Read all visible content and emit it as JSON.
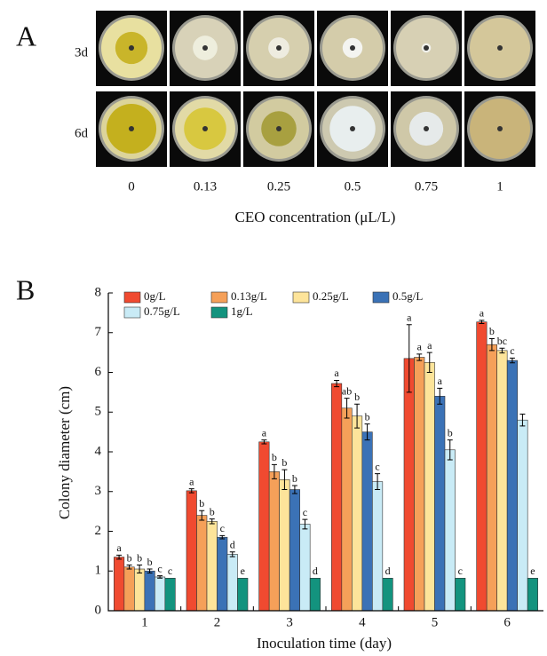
{
  "panel_a": {
    "label": "A",
    "rows": [
      "3d",
      "6d"
    ],
    "columns": [
      "0",
      "0.13",
      "0.25",
      "0.5",
      "0.75",
      "1"
    ],
    "axis_title": "CEO concentration (μL/L)"
  },
  "chart_data": {
    "type": "bar",
    "panel_label": "B",
    "x_label": "Inoculation time (day)",
    "y_label": "Colony diameter (cm)",
    "categories": [
      "1",
      "2",
      "3",
      "4",
      "5",
      "6"
    ],
    "ylim": [
      0,
      8
    ],
    "yticks": [
      0,
      1,
      2,
      3,
      4,
      5,
      6,
      7,
      8
    ],
    "series": [
      {
        "name": "0g/L",
        "color": "#f04a30",
        "values": [
          1.35,
          3.02,
          4.25,
          5.72,
          6.35,
          7.27
        ],
        "errors": [
          0.05,
          0.05,
          0.05,
          0.08,
          0.85,
          0.04
        ],
        "labels": [
          "a",
          "a",
          "a",
          "a",
          "a",
          "a"
        ]
      },
      {
        "name": "0.13g/L",
        "color": "#f5a059",
        "values": [
          1.1,
          2.4,
          3.5,
          5.1,
          6.38,
          6.7
        ],
        "errors": [
          0.05,
          0.12,
          0.18,
          0.25,
          0.08,
          0.15
        ],
        "labels": [
          "b",
          "b",
          "b",
          "ab",
          "a",
          "b"
        ]
      },
      {
        "name": "0.25g/L",
        "color": "#fde49a",
        "values": [
          1.05,
          2.25,
          3.3,
          4.9,
          6.25,
          6.55
        ],
        "errors": [
          0.1,
          0.06,
          0.25,
          0.3,
          0.25,
          0.06
        ],
        "labels": [
          "b",
          "b",
          "b",
          "b",
          "a",
          "bc"
        ]
      },
      {
        "name": "0.5g/L",
        "color": "#3b72b6",
        "values": [
          1.0,
          1.85,
          3.05,
          4.5,
          5.4,
          6.3
        ],
        "errors": [
          0.05,
          0.04,
          0.1,
          0.2,
          0.2,
          0.06
        ],
        "labels": [
          "b",
          "c",
          "b",
          "b",
          "a",
          "c"
        ]
      },
      {
        "name": "0.75g/L",
        "color": "#c9ebf6",
        "values": [
          0.85,
          1.42,
          2.18,
          3.25,
          4.05,
          4.8
        ],
        "errors": [
          0.03,
          0.06,
          0.12,
          0.2,
          0.25,
          0.15
        ],
        "labels": [
          "c",
          "d",
          "c",
          "c",
          "b",
          null
        ]
      },
      {
        "name": "1g/L",
        "color": "#13937e",
        "values": [
          0.82,
          0.82,
          0.82,
          0.82,
          0.82,
          0.82
        ],
        "errors": [
          0,
          0,
          0,
          0,
          0,
          0
        ],
        "labels": [
          "c",
          "e",
          "d",
          "d",
          "c",
          "e"
        ]
      }
    ]
  }
}
